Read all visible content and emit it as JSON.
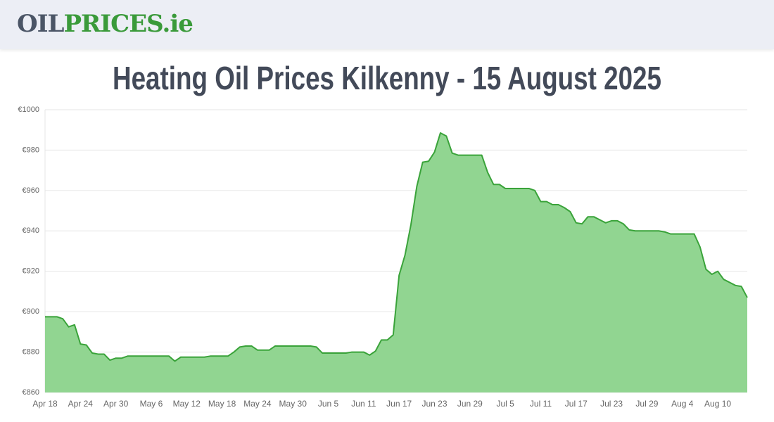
{
  "header": {
    "logo_part1": "OIL",
    "logo_part2": "PRICES.ie"
  },
  "chart_data": {
    "type": "area",
    "title": "Heating Oil Prices Kilkenny - 15 August 2025",
    "categories": [
      "Apr 18",
      null,
      null,
      null,
      null,
      null,
      "Apr 24",
      null,
      null,
      null,
      null,
      null,
      "Apr 30",
      null,
      null,
      null,
      null,
      null,
      "May 6",
      null,
      null,
      null,
      null,
      null,
      "May 12",
      null,
      null,
      null,
      null,
      null,
      "May 18",
      null,
      null,
      null,
      null,
      null,
      "May 24",
      null,
      null,
      null,
      null,
      null,
      "May 30",
      null,
      null,
      null,
      null,
      null,
      "Jun 5",
      null,
      null,
      null,
      null,
      null,
      "Jun 11",
      null,
      null,
      null,
      null,
      null,
      "Jun 17",
      null,
      null,
      null,
      null,
      null,
      "Jun 23",
      null,
      null,
      null,
      null,
      null,
      "Jun 29",
      null,
      null,
      null,
      null,
      null,
      "Jul 5",
      null,
      null,
      null,
      null,
      null,
      "Jul 11",
      null,
      null,
      null,
      null,
      null,
      "Jul 17",
      null,
      null,
      null,
      null,
      null,
      "Jul 23",
      null,
      null,
      null,
      null,
      null,
      "Jul 29",
      null,
      null,
      null,
      null,
      null,
      "Aug 4",
      null,
      null,
      null,
      null,
      null,
      "Aug 10",
      null,
      null,
      null,
      null,
      null
    ],
    "values": [
      897.5,
      897.5,
      897.5,
      896.5,
      892.5,
      893.5,
      884,
      883.5,
      879.5,
      879,
      879,
      876,
      877,
      877,
      878,
      878,
      878,
      878,
      878,
      878,
      878,
      878,
      875.5,
      877.5,
      877.5,
      877.5,
      877.5,
      877.5,
      878,
      878,
      878,
      878,
      880,
      882.5,
      883,
      883,
      881,
      881,
      881,
      883,
      883,
      883,
      883,
      883,
      883,
      883,
      882.5,
      879.5,
      879.5,
      879.5,
      879.5,
      879.5,
      880,
      880,
      880,
      878.5,
      880.5,
      886,
      886,
      888.5,
      918,
      928,
      943,
      962,
      974,
      974.5,
      979,
      988.5,
      987,
      978.5,
      977.5,
      977.5,
      977.5,
      977.5,
      977.5,
      969,
      963,
      963,
      961,
      961,
      961,
      961,
      961,
      960,
      954.5,
      954.5,
      953,
      953,
      951.5,
      949.5,
      944,
      943.5,
      947,
      947,
      945.5,
      944,
      945,
      945,
      943.5,
      940.5,
      940,
      940,
      940,
      940,
      940,
      939.5,
      938.5,
      938.5,
      938.5,
      938.5,
      938.5,
      932,
      921,
      918.5,
      920,
      916,
      914.5,
      913,
      912.5,
      907
    ],
    "color": "#3aa33a",
    "fill_color": "#91d591",
    "ylim": [
      860,
      1000
    ],
    "yticks": [
      {
        "value": 860,
        "label": "€860"
      },
      {
        "value": 880,
        "label": "€880"
      },
      {
        "value": 900,
        "label": "€900"
      },
      {
        "value": 920,
        "label": "€920"
      },
      {
        "value": 940,
        "label": "€940"
      },
      {
        "value": 960,
        "label": "€960"
      },
      {
        "value": 980,
        "label": "€980"
      },
      {
        "value": 1000,
        "label": "€1000"
      }
    ],
    "grid": true
  }
}
